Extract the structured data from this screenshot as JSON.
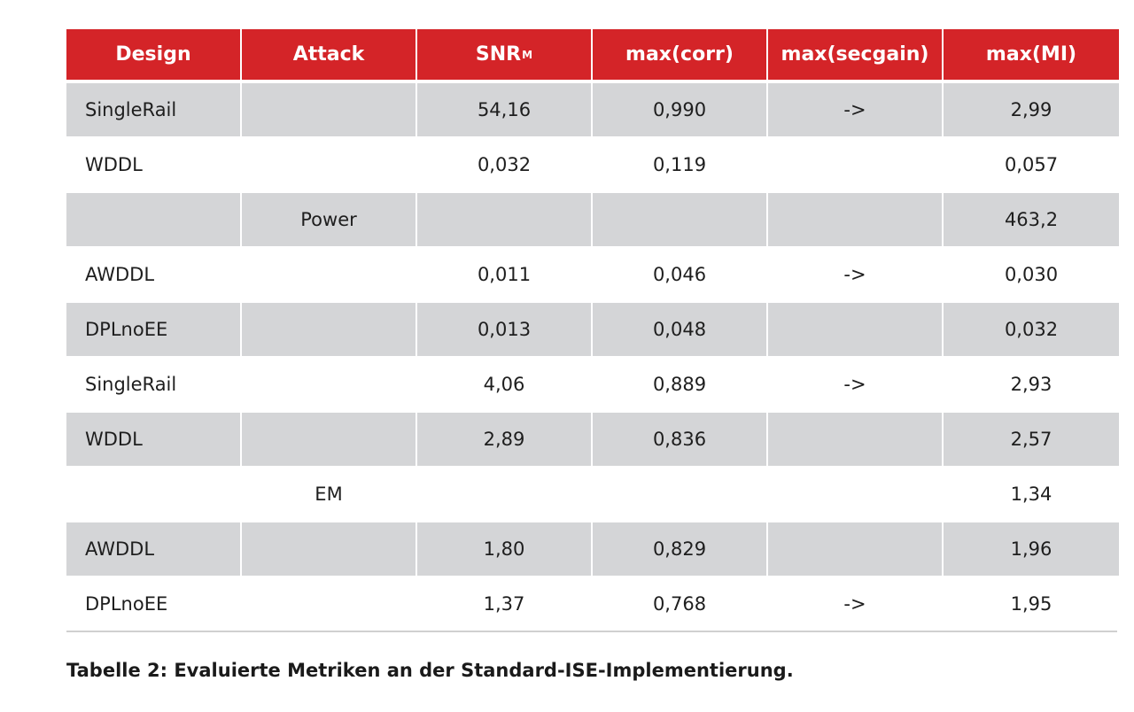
{
  "table": {
    "headers": {
      "design": "Design",
      "attack": "Attack",
      "snr": "SNR",
      "snr_sub": "M",
      "corr": "max(corr)",
      "secgain": "max(secgain)",
      "mi": "max(MI)"
    },
    "rows": [
      {
        "design": "SingleRail",
        "attack": "",
        "snr": "54,16",
        "corr": "0,990",
        "secgain": "->",
        "mi": "2,99"
      },
      {
        "design": "WDDL",
        "attack": "",
        "snr": "0,032",
        "corr": "0,119",
        "secgain": "",
        "mi": "0,057"
      },
      {
        "design": "",
        "attack": "Power",
        "snr": "",
        "corr": "",
        "secgain": "",
        "mi": "463,2"
      },
      {
        "design": "AWDDL",
        "attack": "",
        "snr": "0,011",
        "corr": "0,046",
        "secgain": "->",
        "mi": "0,030"
      },
      {
        "design": "DPLnoEE",
        "attack": "",
        "snr": "0,013",
        "corr": "0,048",
        "secgain": "",
        "mi": "0,032"
      },
      {
        "design": "SingleRail",
        "attack": "",
        "snr": "4,06",
        "corr": "0,889",
        "secgain": "->",
        "mi": "2,93"
      },
      {
        "design": "WDDL",
        "attack": "",
        "snr": "2,89",
        "corr": "0,836",
        "secgain": "",
        "mi": "2,57"
      },
      {
        "design": "",
        "attack": "EM",
        "snr": "",
        "corr": "",
        "secgain": "",
        "mi": "1,34"
      },
      {
        "design": "AWDDL",
        "attack": "",
        "snr": "1,80",
        "corr": "0,829",
        "secgain": "",
        "mi": "1,96"
      },
      {
        "design": "DPLnoEE",
        "attack": "",
        "snr": "1,37",
        "corr": "0,768",
        "secgain": "->",
        "mi": "1,95"
      }
    ]
  },
  "caption": "Tabelle 2: Evaluierte Metriken an der Standard-ISE-Implementierung.",
  "colors": {
    "header_bg": "#d42428",
    "header_text": "#ffffff",
    "row_shade": "#d4d5d7"
  }
}
